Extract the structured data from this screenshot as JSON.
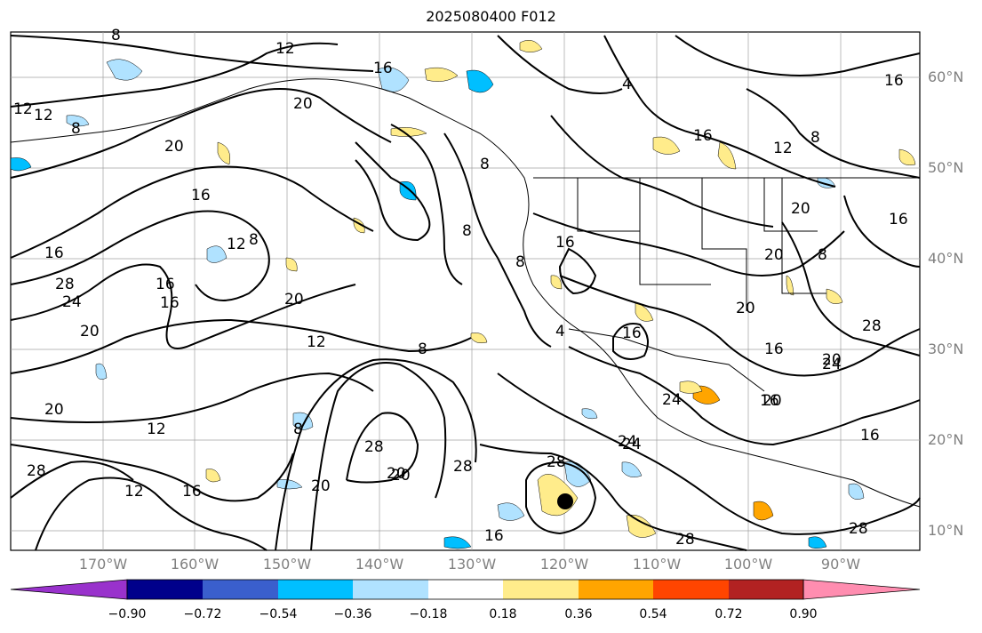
{
  "title": "2025080400 F012",
  "lat_labels": [
    "60°N",
    "50°N",
    "40°N",
    "30°N",
    "20°N",
    "10°N"
  ],
  "lon_labels": [
    "170°W",
    "160°W",
    "150°W",
    "140°W",
    "130°W",
    "120°W",
    "110°W",
    "100°W",
    "90°W"
  ],
  "colorbar": {
    "ticks": [
      "−0.90",
      "−0.72",
      "−0.54",
      "−0.36",
      "−0.18",
      "0.18",
      "0.36",
      "0.54",
      "0.72",
      "0.90"
    ],
    "colors": [
      "#9932cc",
      "#00008b",
      "#3a5fcd",
      "#00bfff",
      "#b0e2ff",
      "#ffffff",
      "#ffec8b",
      "#ffa500",
      "#ff4500",
      "#b22222",
      "#ff8db0"
    ]
  },
  "contour_labels": [
    "8",
    "12",
    "16",
    "20",
    "12",
    "8",
    "20",
    "8",
    "4",
    "16",
    "12",
    "8",
    "16",
    "20",
    "8",
    "20",
    "16",
    "16",
    "16",
    "12",
    "8",
    "16",
    "20",
    "8",
    "20",
    "16",
    "8",
    "28",
    "12",
    "24",
    "20",
    "12",
    "16",
    "8",
    "16",
    "20",
    "20",
    "28",
    "16",
    "12",
    "24",
    "16",
    "20",
    "28",
    "20",
    "8",
    "28",
    "20",
    "4",
    "24",
    "24",
    "20",
    "24",
    "28",
    "28",
    "16",
    "28",
    "12",
    "16",
    "16",
    "28"
  ],
  "colors": {
    "contour": "#000000",
    "grid": "#a0a0a0",
    "coast": "#000000"
  }
}
